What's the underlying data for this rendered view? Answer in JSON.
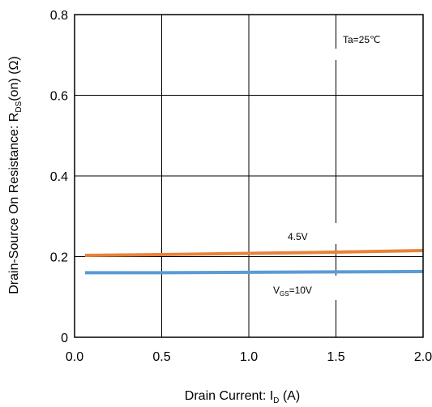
{
  "chart_data": {
    "type": "line",
    "title": "",
    "xlabel": "Drain Current: I_D (A)",
    "xlabel_parts": {
      "main": "Drain Current: I",
      "sub": "D",
      "tail": " (A)"
    },
    "ylabel": "Drain-Source On Resistance: R_DS(on) (Ω)",
    "ylabel_parts": {
      "main": "Drain-Source On Resistance: R",
      "sub": "DS",
      "tail": "(on) (Ω)"
    },
    "xlim": [
      0,
      2.0
    ],
    "ylim": [
      0,
      0.8
    ],
    "x_ticks": [
      "0.0",
      "0.5",
      "1.0",
      "1.5",
      "2.0"
    ],
    "y_ticks": [
      "0",
      "0.2",
      "0.4",
      "0.6",
      "0.8"
    ],
    "grid": true,
    "series": [
      {
        "name": "4.5V",
        "color": "#e8823a",
        "x": [
          0.06,
          0.5,
          1.0,
          1.5,
          2.0
        ],
        "y": [
          0.203,
          0.205,
          0.208,
          0.211,
          0.215
        ]
      },
      {
        "name": "V_GS=10V",
        "color": "#5b9bd5",
        "x": [
          0.06,
          0.5,
          1.0,
          1.5,
          2.0
        ],
        "y": [
          0.16,
          0.16,
          0.161,
          0.162,
          0.163
        ]
      }
    ],
    "annotations": {
      "temperature": "Ta=25℃",
      "label_45": "4.5V",
      "label_10_main": "V",
      "label_10_sub": "GS",
      "label_10_tail": "=10V"
    }
  }
}
